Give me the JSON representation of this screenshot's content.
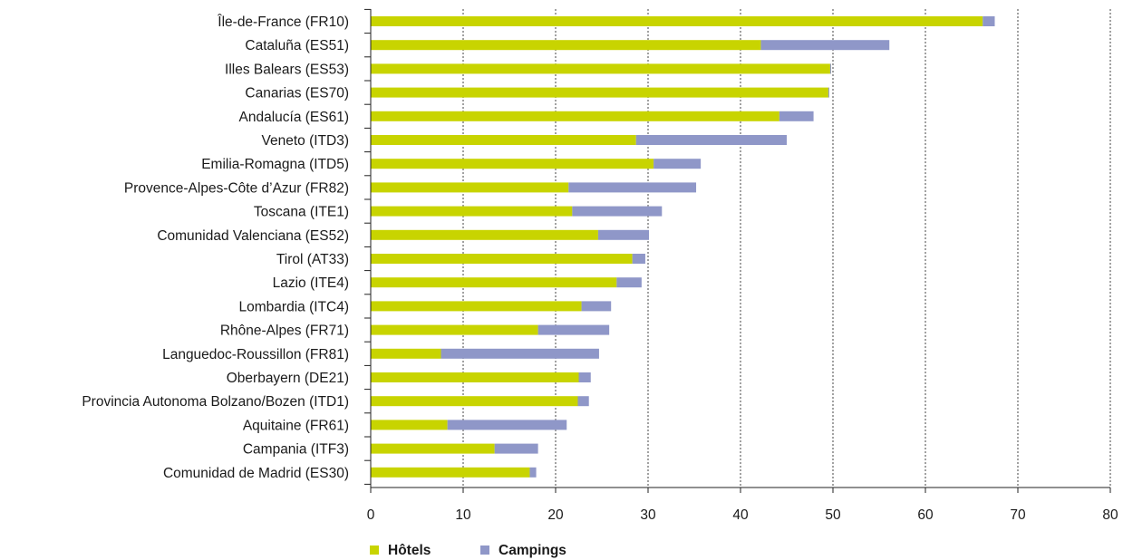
{
  "chart_data": {
    "type": "bar",
    "orientation": "horizontal",
    "stacked": true,
    "categories": [
      "Île-de-France (FR10)",
      "Cataluña (ES51)",
      "Illes Balears (ES53)",
      "Canarias (ES70)",
      "Andalucía (ES61)",
      "Veneto (ITD3)",
      "Emilia-Romagna (ITD5)",
      "Provence-Alpes-Côte d’Azur (FR82)",
      "Toscana (ITE1)",
      "Comunidad Valenciana (ES52)",
      "Tirol (AT33)",
      "Lazio (ITE4)",
      "Lombardia (ITC4)",
      "Rhône-Alpes (FR71)",
      "Languedoc-Roussillon (FR81)",
      "Oberbayern (DE21)",
      "Provincia Autonoma Bolzano/Bozen (ITD1)",
      "Aquitaine (FR61)",
      "Campania (ITF3)",
      "Comunidad de Madrid (ES30)"
    ],
    "series": [
      {
        "name": "Hôtels",
        "color": "#c8d400",
        "values": [
          66.2,
          42.2,
          49.7,
          49.5,
          44.2,
          28.7,
          30.6,
          21.4,
          21.8,
          24.6,
          28.3,
          26.6,
          22.8,
          18.1,
          7.6,
          22.5,
          22.4,
          8.3,
          13.4,
          17.2
        ]
      },
      {
        "name": "Campings",
        "color": "#8f97c8",
        "values": [
          1.3,
          13.9,
          0.1,
          0.1,
          3.7,
          16.3,
          5.1,
          13.8,
          9.7,
          5.5,
          1.4,
          2.7,
          3.2,
          7.7,
          17.1,
          1.3,
          1.2,
          12.9,
          4.7,
          0.7
        ]
      }
    ],
    "xlim": [
      0,
      80
    ],
    "xticks": [
      "0",
      "10",
      "20",
      "30",
      "40",
      "50",
      "60",
      "70",
      "80"
    ],
    "grid": "vertical dashed",
    "legend": "bottom-left",
    "title": "",
    "xlabel": "",
    "ylabel": ""
  }
}
